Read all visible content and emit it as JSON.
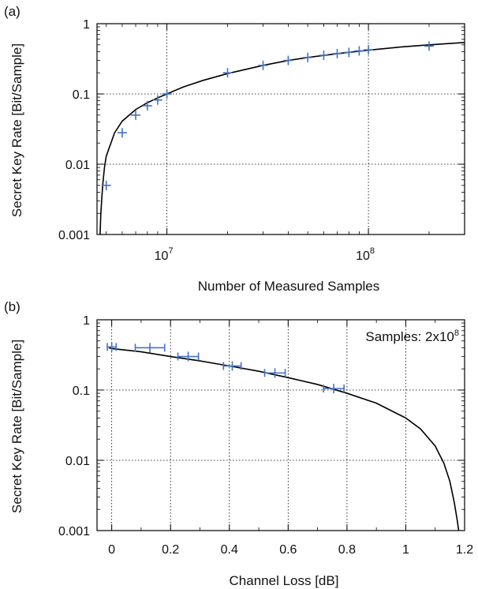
{
  "chart_data": [
    {
      "panel_label": "(a)",
      "type": "scatter",
      "xlabel": "Number of Measured Samples",
      "ylabel": "Secret Key Rate [Bit/Sample]",
      "xscale": "log",
      "yscale": "log",
      "xlim": [
        4500000,
        300000000
      ],
      "ylim": [
        0.001,
        1
      ],
      "grid": true,
      "x_ticks": [
        {
          "value": 10000000,
          "base": "10",
          "exp": "7"
        },
        {
          "value": 100000000,
          "base": "10",
          "exp": "8"
        }
      ],
      "y_ticks": [
        {
          "value": 0.001,
          "label": "0.001"
        },
        {
          "value": 0.01,
          "label": "0.01"
        },
        {
          "value": 0.1,
          "label": "0.1"
        },
        {
          "value": 1,
          "label": "1"
        }
      ],
      "series": [
        {
          "kind": "points",
          "marker": "+",
          "color": "#4472c4",
          "x": [
            5000000,
            6000000,
            7000000,
            8000000,
            9000000,
            10000000,
            20000000,
            30000000,
            40000000,
            50000000,
            60000000,
            70000000,
            80000000,
            90000000,
            100000000,
            200000000
          ],
          "y": [
            0.005,
            0.028,
            0.05,
            0.068,
            0.082,
            0.1,
            0.2,
            0.255,
            0.3,
            0.33,
            0.355,
            0.375,
            0.39,
            0.41,
            0.425,
            0.48
          ]
        },
        {
          "kind": "line",
          "color": "#000000",
          "x": [
            4660000,
            4700000,
            4800000,
            4900000,
            5000000,
            5500000,
            6000000,
            7000000,
            8000000,
            9000000,
            10000000,
            12000000,
            15000000,
            20000000,
            30000000,
            40000000,
            50000000,
            70000000,
            100000000,
            150000000,
            200000000,
            300000000
          ],
          "y": [
            0.001,
            0.002,
            0.005,
            0.009,
            0.013,
            0.028,
            0.041,
            0.06,
            0.075,
            0.088,
            0.1,
            0.125,
            0.155,
            0.195,
            0.255,
            0.3,
            0.33,
            0.375,
            0.42,
            0.47,
            0.5,
            0.54
          ]
        }
      ]
    },
    {
      "panel_label": "(b)",
      "type": "scatter",
      "xlabel": "Channel Loss [dB]",
      "ylabel": "Secret Key Rate [Bit/Sample]",
      "yscale": "log",
      "xlim": [
        -0.05,
        1.2
      ],
      "ylim": [
        0.001,
        1
      ],
      "grid": true,
      "annotation": {
        "text": "Samples: 2x10",
        "sup": "8",
        "position": "top-right"
      },
      "x_ticks": [
        {
          "value": 0,
          "label": "0"
        },
        {
          "value": 0.2,
          "label": "0.2"
        },
        {
          "value": 0.4,
          "label": "0.4"
        },
        {
          "value": 0.6,
          "label": "0.6"
        },
        {
          "value": 0.8,
          "label": "0.8"
        },
        {
          "value": 1,
          "label": "1"
        },
        {
          "value": 1.2,
          "label": "1.2"
        }
      ],
      "y_ticks": [
        {
          "value": 0.001,
          "label": "0.001"
        },
        {
          "value": 0.01,
          "label": "0.01"
        },
        {
          "value": 0.1,
          "label": "0.1"
        },
        {
          "value": 1,
          "label": "1"
        }
      ],
      "series": [
        {
          "kind": "points",
          "marker": "+",
          "color": "#4472c4",
          "x": [
            0,
            0.13,
            0.26,
            0.41,
            0.555,
            0.755
          ],
          "y": [
            0.41,
            0.4,
            0.3,
            0.22,
            0.175,
            0.105
          ],
          "xerr": [
            0.015,
            0.05,
            0.035,
            0.03,
            0.035,
            0.035
          ]
        },
        {
          "kind": "line",
          "color": "#000000",
          "x": [
            -0.01,
            0,
            0.1,
            0.2,
            0.3,
            0.4,
            0.5,
            0.6,
            0.7,
            0.8,
            0.9,
            1.0,
            1.05,
            1.1,
            1.13,
            1.15,
            1.165,
            1.175,
            1.18
          ],
          "y": [
            0.4,
            0.39,
            0.35,
            0.3,
            0.26,
            0.22,
            0.185,
            0.15,
            0.12,
            0.09,
            0.065,
            0.04,
            0.028,
            0.016,
            0.009,
            0.005,
            0.0025,
            0.0014,
            0.001
          ]
        }
      ]
    }
  ]
}
